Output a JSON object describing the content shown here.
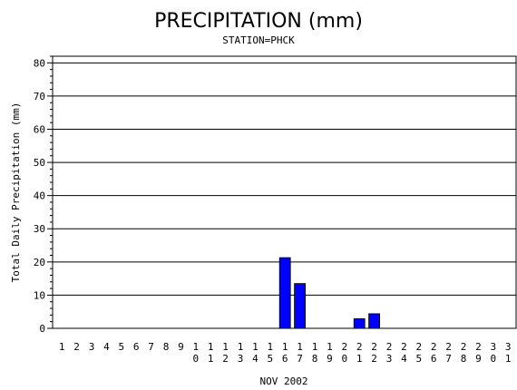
{
  "chart_data": {
    "type": "bar",
    "title": "PRECIPITATION (mm)",
    "subtitle": "STATION=PHCK",
    "xlabel": "NOV 2002",
    "ylabel": "Total Daily Precipitation (mm)",
    "ylim": [
      0,
      82
    ],
    "yticks": [
      0,
      10,
      20,
      30,
      40,
      50,
      60,
      70,
      80
    ],
    "grid": true,
    "bar_color": "#0000ff",
    "categories": [
      "1",
      "2",
      "3",
      "4",
      "5",
      "6",
      "7",
      "8",
      "9",
      "10",
      "11",
      "12",
      "13",
      "14",
      "15",
      "16",
      "17",
      "18",
      "19",
      "20",
      "21",
      "22",
      "23",
      "24",
      "25",
      "26",
      "27",
      "28",
      "29",
      "30",
      "31"
    ],
    "values": [
      0,
      0,
      0,
      0,
      0,
      0,
      0,
      0,
      0,
      0,
      0,
      0,
      0,
      0,
      0,
      21.3,
      13.5,
      0,
      0,
      0,
      2.9,
      4.4,
      0,
      0,
      0,
      0,
      0,
      0,
      0,
      0,
      0
    ]
  }
}
